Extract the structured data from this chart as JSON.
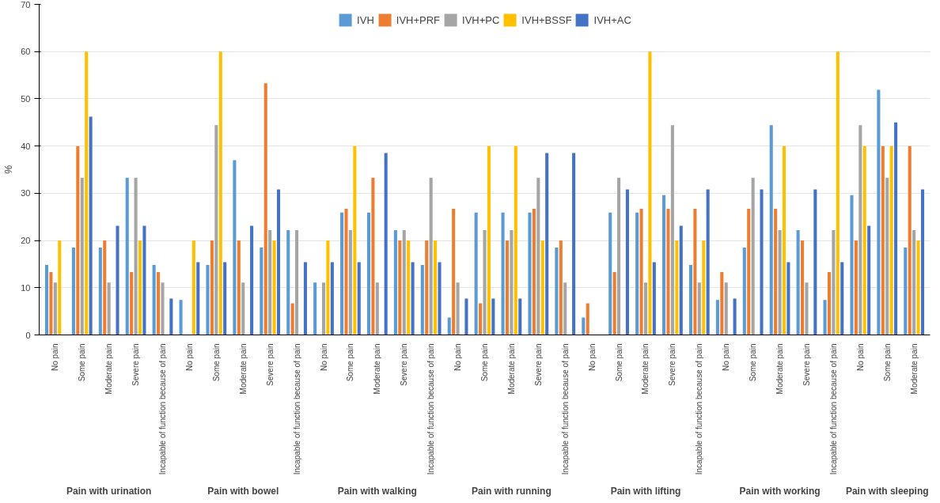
{
  "chart_data": {
    "type": "bar",
    "ylabel": "%",
    "ylim": [
      0,
      70
    ],
    "yticks": [
      0,
      10,
      20,
      30,
      40,
      50,
      60,
      70
    ],
    "grid": "y",
    "legend": "top",
    "categories": [
      "No pain",
      "Some pain",
      "Moderate pain",
      "Severe pain",
      "Incapable of function because of pain",
      "No pain",
      "Some pain",
      "Moderate pain",
      "Severe pain",
      "Incapable of function because of pain",
      "No pain",
      "Some pain",
      "Moderate pain",
      "Severe pain",
      "Incapable of function because of pain",
      "No pain",
      "Some pain",
      "Moderate pain",
      "Severe pain",
      "Incapable of function because of pain",
      "No pain",
      "Some pain",
      "Moderate pain",
      "Severe pain",
      "Incapable of function because of pain",
      "No pain",
      "Some pain",
      "Moderate pain",
      "Severe pain",
      "Incapable of function because of pain",
      "No pain",
      "Some pain",
      "Moderate pain"
    ],
    "annotations": [
      "Pain with urination",
      "Pain with bowel",
      "Pain with walking",
      "Pain with running",
      "Pain with lifting",
      "Pain with working",
      "Pain with sleeping"
    ],
    "series": [
      {
        "name": "IVH",
        "color": "#5b9bd5",
        "values": [
          14.8,
          18.5,
          18.5,
          33.3,
          14.8,
          7.4,
          14.8,
          37,
          18.5,
          22.2,
          11.1,
          25.9,
          25.9,
          22.2,
          14.8,
          3.7,
          25.9,
          25.9,
          25.9,
          18.5,
          3.7,
          25.9,
          25.9,
          29.6,
          14.8,
          7.4,
          18.5,
          44.4,
          22.2,
          7.4,
          29.6,
          51.9,
          18.5
        ]
      },
      {
        "name": "IVH+PRF",
        "color": "#ed7d31",
        "values": [
          13.3,
          40,
          20,
          13.3,
          13.3,
          0,
          20,
          20,
          53.3,
          6.7,
          0,
          26.7,
          33.3,
          20,
          20,
          26.7,
          6.7,
          20,
          26.7,
          20,
          6.7,
          13.3,
          26.7,
          26.7,
          26.7,
          13.3,
          26.7,
          26.7,
          20,
          13.3,
          20,
          40,
          40
        ]
      },
      {
        "name": "IVH+PC",
        "color": "#a5a5a5",
        "values": [
          11.1,
          33.3,
          11.1,
          33.3,
          11.1,
          0,
          44.4,
          11.1,
          22.2,
          22.2,
          11.1,
          22.2,
          11.1,
          22.2,
          33.3,
          11.1,
          22.2,
          22.2,
          33.3,
          11.1,
          0,
          33.3,
          11.1,
          44.4,
          11.1,
          11.1,
          33.3,
          22.2,
          11.1,
          22.2,
          44.4,
          33.3,
          22.2
        ]
      },
      {
        "name": "IVH+BSSF",
        "color": "#ffc000",
        "values": [
          20,
          60,
          0,
          20,
          0,
          20,
          60,
          0,
          20,
          0,
          20,
          40,
          0,
          20,
          20,
          0,
          40,
          40,
          20,
          0,
          0,
          0,
          60,
          20,
          20,
          0,
          0,
          40,
          0,
          60,
          40,
          40,
          20
        ]
      },
      {
        "name": "IVH+AC",
        "color": "#4472c4",
        "values": [
          0,
          46.2,
          23.1,
          23.1,
          7.7,
          15.4,
          15.4,
          23.1,
          30.8,
          15.4,
          15.4,
          15.4,
          38.5,
          15.4,
          15.4,
          7.7,
          7.7,
          7.7,
          38.5,
          38.5,
          0,
          30.8,
          15.4,
          23.1,
          30.8,
          7.7,
          30.8,
          15.4,
          30.8,
          15.4,
          23.1,
          45,
          30.8
        ]
      }
    ]
  }
}
